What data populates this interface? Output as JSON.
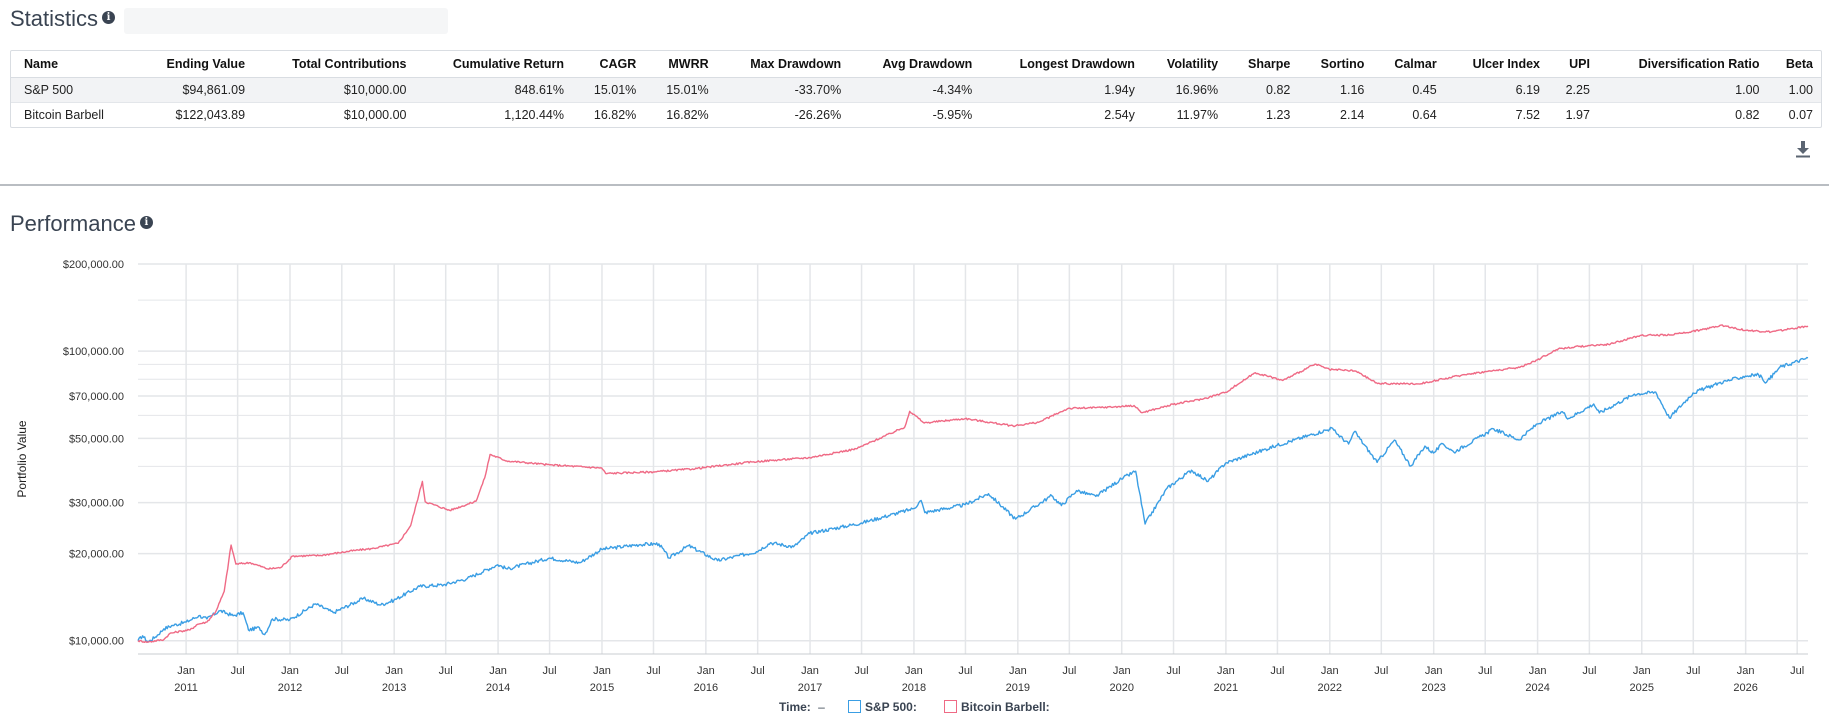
{
  "statistics": {
    "title": "Statistics",
    "info_icon": "i",
    "columns": [
      "Name",
      "Ending Value",
      "Total Contributions",
      "Cumulative Return",
      "CAGR",
      "MWRR",
      "Max Drawdown",
      "Avg Drawdown",
      "Longest Drawdown",
      "Volatility",
      "Sharpe",
      "Sortino",
      "Calmar",
      "Ulcer Index",
      "UPI",
      "Diversification Ratio",
      "Beta"
    ],
    "rows": [
      [
        "S&P 500",
        "$94,861.09",
        "$10,000.00",
        "848.61%",
        "15.01%",
        "15.01%",
        "-33.70%",
        "-4.34%",
        "1.94y",
        "16.96%",
        "0.82",
        "1.16",
        "0.45",
        "6.19",
        "2.25",
        "1.00",
        "1.00"
      ],
      [
        "Bitcoin Barbell",
        "$122,043.89",
        "$10,000.00",
        "1,120.44%",
        "16.82%",
        "16.82%",
        "-26.26%",
        "-5.95%",
        "2.54y",
        "11.97%",
        "1.23",
        "2.14",
        "0.64",
        "7.52",
        "1.97",
        "0.82",
        "0.07"
      ]
    ],
    "download_icon": "download-icon"
  },
  "performance": {
    "title": "Performance",
    "info_icon": "i"
  },
  "colors": {
    "sp500": "#3a9ee4",
    "bitcoin": "#ef6a85",
    "grid": "#e4e6e9",
    "axis_text": "#333333"
  },
  "legend": {
    "time_label": "Time:",
    "time_value": "–",
    "sp500_label": "S&P 500:",
    "bitcoin_label": "Bitcoin Barbell:"
  },
  "chart_data": {
    "type": "line",
    "title": "",
    "xlabel": "",
    "ylabel": "Portfolio Value",
    "y_scale": "log",
    "ylim": [
      9000,
      200000
    ],
    "xlim": [
      "2010-07-16",
      "2026-08-08"
    ],
    "y_ticks": [
      {
        "value": 10000,
        "label": "$10,000.00"
      },
      {
        "value": 20000,
        "label": "$20,000.00"
      },
      {
        "value": 30000,
        "label": "$30,000.00"
      },
      {
        "value": 50000,
        "label": "$50,000.00"
      },
      {
        "value": 70000,
        "label": "$70,000.00"
      },
      {
        "value": 100000,
        "label": "$100,000.00"
      },
      {
        "value": 200000,
        "label": "$200,000.00"
      }
    ],
    "x_ticks": [
      {
        "date": "2011-01-01",
        "label": "Jan",
        "year": "2011"
      },
      {
        "date": "2011-07-01",
        "label": "Jul",
        "year": ""
      },
      {
        "date": "2012-01-01",
        "label": "Jan",
        "year": "2012"
      },
      {
        "date": "2012-07-01",
        "label": "Jul",
        "year": ""
      },
      {
        "date": "2013-01-01",
        "label": "Jan",
        "year": "2013"
      },
      {
        "date": "2013-07-01",
        "label": "Jul",
        "year": ""
      },
      {
        "date": "2014-01-01",
        "label": "Jan",
        "year": "2014"
      },
      {
        "date": "2014-07-01",
        "label": "Jul",
        "year": ""
      },
      {
        "date": "2015-01-01",
        "label": "Jan",
        "year": "2015"
      },
      {
        "date": "2015-07-01",
        "label": "Jul",
        "year": ""
      },
      {
        "date": "2016-01-01",
        "label": "Jan",
        "year": "2016"
      },
      {
        "date": "2016-07-01",
        "label": "Jul",
        "year": ""
      },
      {
        "date": "2017-01-01",
        "label": "Jan",
        "year": "2017"
      },
      {
        "date": "2017-07-01",
        "label": "Jul",
        "year": ""
      },
      {
        "date": "2018-01-01",
        "label": "Jan",
        "year": "2018"
      },
      {
        "date": "2018-07-01",
        "label": "Jul",
        "year": ""
      },
      {
        "date": "2019-01-01",
        "label": "Jan",
        "year": "2019"
      },
      {
        "date": "2019-07-01",
        "label": "Jul",
        "year": ""
      },
      {
        "date": "2020-01-01",
        "label": "Jan",
        "year": "2020"
      },
      {
        "date": "2020-07-01",
        "label": "Jul",
        "year": ""
      },
      {
        "date": "2021-01-01",
        "label": "Jan",
        "year": "2021"
      },
      {
        "date": "2021-07-01",
        "label": "Jul",
        "year": ""
      },
      {
        "date": "2022-01-01",
        "label": "Jan",
        "year": "2022"
      },
      {
        "date": "2022-07-01",
        "label": "Jul",
        "year": ""
      },
      {
        "date": "2023-01-01",
        "label": "Jan",
        "year": "2023"
      },
      {
        "date": "2023-07-01",
        "label": "Jul",
        "year": ""
      },
      {
        "date": "2024-01-01",
        "label": "Jan",
        "year": "2024"
      },
      {
        "date": "2024-07-01",
        "label": "Jul",
        "year": ""
      },
      {
        "date": "2025-01-01",
        "label": "Jan",
        "year": "2025"
      },
      {
        "date": "2025-07-01",
        "label": "Jul",
        "year": ""
      },
      {
        "date": "2026-01-01",
        "label": "Jan",
        "year": "2026"
      },
      {
        "date": "2026-07-01",
        "label": "Jul",
        "year": ""
      }
    ],
    "grid": true,
    "series": [
      {
        "name": "S&P 500",
        "color": "#3a9ee4",
        "points": [
          [
            "2010-07-16",
            10000
          ],
          [
            "2010-08-01",
            10400
          ],
          [
            "2010-08-20",
            9900
          ],
          [
            "2010-09-15",
            10300
          ],
          [
            "2010-10-15",
            11000
          ],
          [
            "2010-11-15",
            11300
          ],
          [
            "2011-01-01",
            11600
          ],
          [
            "2011-02-15",
            12200
          ],
          [
            "2011-03-15",
            11900
          ],
          [
            "2011-04-30",
            12700
          ],
          [
            "2011-06-15",
            12200
          ],
          [
            "2011-07-20",
            12500
          ],
          [
            "2011-08-08",
            10900
          ],
          [
            "2011-09-15",
            11100
          ],
          [
            "2011-10-04",
            10500
          ],
          [
            "2011-10-31",
            11900
          ],
          [
            "2011-12-31",
            11800
          ],
          [
            "2012-03-31",
            13400
          ],
          [
            "2012-06-01",
            12500
          ],
          [
            "2012-09-15",
            14000
          ],
          [
            "2012-11-15",
            13300
          ],
          [
            "2012-12-31",
            13800
          ],
          [
            "2013-03-31",
            15400
          ],
          [
            "2013-06-24",
            15600
          ],
          [
            "2013-09-15",
            16400
          ],
          [
            "2013-12-31",
            18300
          ],
          [
            "2014-02-03",
            17700
          ],
          [
            "2014-06-30",
            19300
          ],
          [
            "2014-10-15",
            18600
          ],
          [
            "2014-12-31",
            20700
          ],
          [
            "2015-05-15",
            21500
          ],
          [
            "2015-07-20",
            21600
          ],
          [
            "2015-08-25",
            19300
          ],
          [
            "2015-11-01",
            21300
          ],
          [
            "2016-02-11",
            18900
          ],
          [
            "2016-06-27",
            20300
          ],
          [
            "2016-08-15",
            21800
          ],
          [
            "2016-11-04",
            21100
          ],
          [
            "2016-12-31",
            23500
          ],
          [
            "2017-06-30",
            25500
          ],
          [
            "2017-12-31",
            28600
          ],
          [
            "2018-01-26",
            30500
          ],
          [
            "2018-02-08",
            27700
          ],
          [
            "2018-06-30",
            29500
          ],
          [
            "2018-09-20",
            32200
          ],
          [
            "2018-12-24",
            26300
          ],
          [
            "2019-04-30",
            31700
          ],
          [
            "2019-06-03",
            29300
          ],
          [
            "2019-07-26",
            33000
          ],
          [
            "2019-10-02",
            31500
          ],
          [
            "2019-12-31",
            36200
          ],
          [
            "2020-02-19",
            38500
          ],
          [
            "2020-03-23",
            25300
          ],
          [
            "2020-06-08",
            33600
          ],
          [
            "2020-09-02",
            38800
          ],
          [
            "2020-10-30",
            35500
          ],
          [
            "2020-12-31",
            41100
          ],
          [
            "2021-06-30",
            47300
          ],
          [
            "2021-12-31",
            53800
          ],
          [
            "2022-01-03",
            54500
          ],
          [
            "2022-03-08",
            47800
          ],
          [
            "2022-03-29",
            52800
          ],
          [
            "2022-06-16",
            41300
          ],
          [
            "2022-08-16",
            49300
          ],
          [
            "2022-10-12",
            40100
          ],
          [
            "2022-12-01",
            47000
          ],
          [
            "2022-12-31",
            44500
          ],
          [
            "2023-02-02",
            47900
          ],
          [
            "2023-03-13",
            44800
          ],
          [
            "2023-07-31",
            53900
          ],
          [
            "2023-10-27",
            49400
          ],
          [
            "2023-12-31",
            56100
          ],
          [
            "2024-03-28",
            61800
          ],
          [
            "2024-04-19",
            58600
          ],
          [
            "2024-07-16",
            65700
          ],
          [
            "2024-08-05",
            61200
          ],
          [
            "2024-12-06",
            71100
          ],
          [
            "2025-02-19",
            72200
          ],
          [
            "2025-04-08",
            58800
          ],
          [
            "2025-06-30",
            71700
          ],
          [
            "2025-09-30",
            77700
          ],
          [
            "2025-12-31",
            82000
          ],
          [
            "2026-02-15",
            83000
          ],
          [
            "2026-03-15",
            78000
          ],
          [
            "2026-05-01",
            88000
          ],
          [
            "2026-08-08",
            94861
          ]
        ]
      },
      {
        "name": "Bitcoin Barbell",
        "color": "#ef6a85",
        "points": [
          [
            "2010-07-16",
            10000
          ],
          [
            "2010-08-20",
            9900
          ],
          [
            "2010-10-15",
            10100
          ],
          [
            "2010-11-05",
            10600
          ],
          [
            "2010-12-15",
            10800
          ],
          [
            "2011-01-15",
            10900
          ],
          [
            "2011-02-10",
            11400
          ],
          [
            "2011-03-15",
            11600
          ],
          [
            "2011-04-15",
            12600
          ],
          [
            "2011-05-15",
            14800
          ],
          [
            "2011-06-08",
            21400
          ],
          [
            "2011-06-25",
            18400
          ],
          [
            "2011-08-15",
            18600
          ],
          [
            "2011-10-15",
            17700
          ],
          [
            "2011-11-30",
            17900
          ],
          [
            "2012-01-10",
            19600
          ],
          [
            "2012-04-15",
            19700
          ],
          [
            "2012-08-15",
            20500
          ],
          [
            "2012-10-15",
            20800
          ],
          [
            "2013-01-15",
            21700
          ],
          [
            "2013-02-28",
            25000
          ],
          [
            "2013-04-10",
            35500
          ],
          [
            "2013-04-20",
            30200
          ],
          [
            "2013-07-15",
            28200
          ],
          [
            "2013-10-15",
            30300
          ],
          [
            "2013-11-15",
            36500
          ],
          [
            "2013-12-04",
            44000
          ],
          [
            "2014-01-31",
            41800
          ],
          [
            "2014-06-30",
            40500
          ],
          [
            "2014-12-31",
            39500
          ],
          [
            "2015-01-14",
            37800
          ],
          [
            "2015-06-30",
            38300
          ],
          [
            "2015-11-15",
            39200
          ],
          [
            "2016-06-17",
            41500
          ],
          [
            "2016-12-31",
            42900
          ],
          [
            "2017-06-12",
            46000
          ],
          [
            "2017-11-30",
            54700
          ],
          [
            "2017-12-17",
            62000
          ],
          [
            "2018-02-06",
            56500
          ],
          [
            "2018-06-30",
            58500
          ],
          [
            "2018-12-15",
            55200
          ],
          [
            "2019-03-15",
            56800
          ],
          [
            "2019-06-26",
            63400
          ],
          [
            "2019-09-30",
            63800
          ],
          [
            "2019-12-31",
            64400
          ],
          [
            "2020-02-13",
            64900
          ],
          [
            "2020-03-12",
            61300
          ],
          [
            "2020-06-30",
            65500
          ],
          [
            "2020-10-15",
            68500
          ],
          [
            "2020-12-31",
            72100
          ],
          [
            "2021-04-14",
            84300
          ],
          [
            "2021-07-20",
            79200
          ],
          [
            "2021-11-10",
            90200
          ],
          [
            "2021-12-31",
            86400
          ],
          [
            "2022-03-31",
            85500
          ],
          [
            "2022-06-18",
            77300
          ],
          [
            "2022-11-10",
            77100
          ],
          [
            "2022-12-31",
            78900
          ],
          [
            "2023-04-30",
            83400
          ],
          [
            "2023-10-30",
            87900
          ],
          [
            "2023-12-31",
            93300
          ],
          [
            "2024-03-14",
            102000
          ],
          [
            "2024-06-30",
            104600
          ],
          [
            "2024-09-06",
            105500
          ],
          [
            "2024-12-31",
            113500
          ],
          [
            "2025-04-08",
            113700
          ],
          [
            "2025-07-31",
            118500
          ],
          [
            "2025-10-07",
            123000
          ],
          [
            "2025-12-31",
            118000
          ],
          [
            "2026-03-31",
            116500
          ],
          [
            "2026-08-08",
            122044
          ]
        ]
      }
    ]
  }
}
